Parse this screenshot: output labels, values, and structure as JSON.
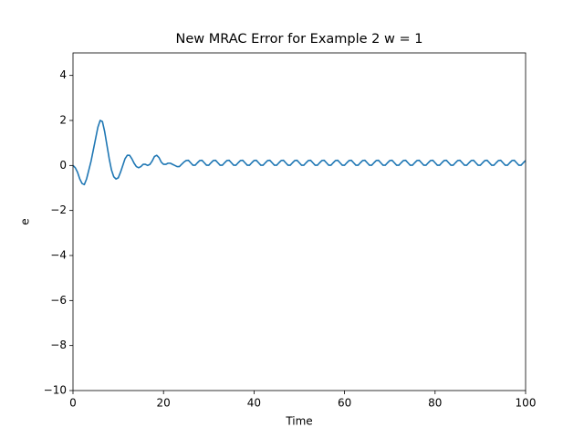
{
  "chart_data": {
    "type": "line",
    "title": "New MRAC Error for Example 2 w = 1",
    "x_label": "Time",
    "y_label": "e",
    "xlim": [
      0,
      100
    ],
    "ylim": [
      -10,
      5
    ],
    "xticks": [
      0,
      20,
      40,
      60,
      80,
      100
    ],
    "yticks": [
      {
        "value": -10,
        "label": "−10"
      },
      {
        "value": -8,
        "label": "−8"
      },
      {
        "value": -6,
        "label": "−6"
      },
      {
        "value": -4,
        "label": "−4"
      },
      {
        "value": -2,
        "label": "−2"
      },
      0,
      2,
      4
    ],
    "x": [
      0,
      0.5,
      1,
      1.5,
      2,
      2.5,
      3,
      3.5,
      4,
      4.5,
      5,
      5.5,
      6,
      6.5,
      7,
      7.5,
      8,
      8.5,
      9,
      9.5,
      10,
      10.5,
      11,
      11.5,
      12,
      12.5,
      13,
      13.5,
      14,
      14.5,
      15,
      15.5,
      16,
      16.5,
      17,
      17.5,
      18,
      18.5,
      19,
      19.5,
      20,
      20.5,
      21,
      21.5,
      22,
      22.5,
      23,
      23.5,
      24,
      24.5,
      25,
      25.5,
      26,
      26.5,
      27,
      27.5,
      28,
      28.5,
      29,
      29.5,
      30,
      30.5,
      31,
      31.5,
      32,
      32.5,
      33,
      33.5,
      34,
      34.5,
      35,
      35.5,
      36,
      36.5,
      37,
      37.5,
      38,
      38.5,
      39,
      39.5,
      40,
      40.5,
      41,
      41.5,
      42,
      42.5,
      43,
      43.5,
      44,
      44.5,
      45,
      45.5,
      46,
      46.5,
      47,
      47.5,
      48,
      48.5,
      49,
      49.5,
      50,
      50.5,
      51,
      51.5,
      52,
      52.5,
      53,
      53.5,
      54,
      54.5,
      55,
      55.5,
      56,
      56.5,
      57,
      57.5,
      58,
      58.5,
      59,
      59.5,
      60,
      60.5,
      61,
      61.5,
      62,
      62.5,
      63,
      63.5,
      64,
      64.5,
      65,
      65.5,
      66,
      66.5,
      67,
      67.5,
      68,
      68.5,
      69,
      69.5,
      70,
      70.5,
      71,
      71.5,
      72,
      72.5,
      73,
      73.5,
      74,
      74.5,
      75,
      75.5,
      76,
      76.5,
      77,
      77.5,
      78,
      78.5,
      79,
      79.5,
      80,
      80.5,
      81,
      81.5,
      82,
      82.5,
      83,
      83.5,
      84,
      84.5,
      85,
      85.5,
      86,
      86.5,
      87,
      87.5,
      88,
      88.5,
      89,
      89.5,
      90,
      90.5,
      91,
      91.5,
      92,
      92.5,
      93,
      93.5,
      94,
      94.5,
      95,
      95.5,
      96,
      96.5,
      97,
      97.5,
      98,
      98.5,
      99,
      99.5,
      100
    ],
    "series": [
      {
        "color": "#1f77b4",
        "values": [
          0,
          -0.1,
          -0.3,
          -0.6,
          -0.8,
          -0.85,
          -0.6,
          -0.2,
          0.2,
          0.7,
          1.2,
          1.7,
          2.0,
          1.95,
          1.5,
          0.9,
          0.3,
          -0.2,
          -0.5,
          -0.6,
          -0.55,
          -0.3,
          0,
          0.3,
          0.45,
          0.45,
          0.3,
          0.1,
          -0.05,
          -0.1,
          -0.05,
          0.05,
          0.05,
          0,
          0.05,
          0.2,
          0.4,
          0.45,
          0.35,
          0.15,
          0.05,
          0.05,
          0.1,
          0.1,
          0.05,
          0,
          -0.05,
          -0.05,
          0.05,
          0.15,
          0.22,
          0.23,
          0.12,
          0.01,
          0.01,
          0.12,
          0.22,
          0.23,
          0.12,
          0.01,
          0.01,
          0.12,
          0.22,
          0.23,
          0.12,
          0.01,
          0.01,
          0.12,
          0.22,
          0.23,
          0.12,
          0.01,
          0.01,
          0.12,
          0.22,
          0.23,
          0.12,
          0.01,
          0.01,
          0.12,
          0.22,
          0.23,
          0.12,
          0.01,
          0.01,
          0.12,
          0.22,
          0.23,
          0.12,
          0.01,
          0.01,
          0.12,
          0.22,
          0.23,
          0.12,
          0.01,
          0.01,
          0.12,
          0.22,
          0.23,
          0.12,
          0.01,
          0.01,
          0.12,
          0.22,
          0.23,
          0.12,
          0.01,
          0.01,
          0.12,
          0.22,
          0.23,
          0.12,
          0.01,
          0.01,
          0.12,
          0.22,
          0.23,
          0.12,
          0.01,
          0.01,
          0.12,
          0.22,
          0.23,
          0.12,
          0.01,
          0.01,
          0.12,
          0.22,
          0.23,
          0.12,
          0.01,
          0.01,
          0.12,
          0.22,
          0.23,
          0.12,
          0.01,
          0.01,
          0.12,
          0.22,
          0.23,
          0.12,
          0.01,
          0.01,
          0.12,
          0.22,
          0.23,
          0.12,
          0.01,
          0.01,
          0.12,
          0.22,
          0.23,
          0.12,
          0.01,
          0.01,
          0.12,
          0.22,
          0.23,
          0.12,
          0.01,
          0.01,
          0.12,
          0.22,
          0.23,
          0.12,
          0.01,
          0.01,
          0.12,
          0.22,
          0.23,
          0.12,
          0.01,
          0.01,
          0.12,
          0.22,
          0.23,
          0.12,
          0.01,
          0.01,
          0.12,
          0.22,
          0.23,
          0.12,
          0.01,
          0.01,
          0.12,
          0.22,
          0.23,
          0.12,
          0.01,
          0.01,
          0.12,
          0.22,
          0.23,
          0.12,
          0.01,
          0.01,
          0.12,
          0.22
        ]
      }
    ]
  }
}
